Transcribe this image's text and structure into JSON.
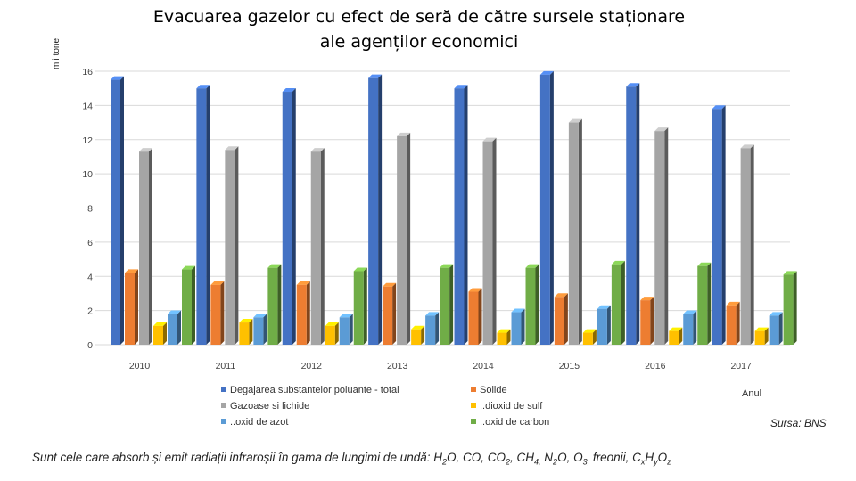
{
  "title_line1": "Evacuarea gazelor cu efect de seră de către sursele staționare",
  "title_line2": "ale agenților economici",
  "chart_data": {
    "type": "bar",
    "title": "Evacuarea gazelor cu efect de seră de către sursele staționare ale agenților economici",
    "ylabel": "mii tone",
    "xlabel": "Anul",
    "ylim": [
      0,
      16
    ],
    "yticks": [
      0,
      2,
      4,
      6,
      8,
      10,
      12,
      14,
      16
    ],
    "grid": true,
    "legend_position": "bottom",
    "categories": [
      "2010",
      "2011",
      "2012",
      "2013",
      "2014",
      "2015",
      "2016",
      "2017"
    ],
    "series": [
      {
        "name": "Degajarea substantelor poluante - total",
        "color": "#4472C4",
        "values": [
          15.5,
          15.0,
          14.8,
          15.6,
          15.0,
          15.8,
          15.1,
          13.8
        ]
      },
      {
        "name": "Solide",
        "color": "#ED7D31",
        "values": [
          4.2,
          3.5,
          3.5,
          3.4,
          3.1,
          2.8,
          2.6,
          2.3
        ]
      },
      {
        "name": "Gazoase si lichide",
        "color": "#A5A5A5",
        "values": [
          11.3,
          11.4,
          11.3,
          12.2,
          11.9,
          13.0,
          12.5,
          11.5
        ]
      },
      {
        "name": "..dioxid de sulf",
        "color": "#FFC000",
        "values": [
          1.1,
          1.3,
          1.1,
          0.9,
          0.7,
          0.7,
          0.8,
          0.8
        ]
      },
      {
        "name": "..oxid de azot",
        "color": "#5B9BD5",
        "values": [
          1.8,
          1.6,
          1.6,
          1.7,
          1.9,
          2.1,
          1.8,
          1.7
        ]
      },
      {
        "name": "..oxid de carbon",
        "color": "#70AD47",
        "values": [
          4.4,
          4.5,
          4.3,
          4.5,
          4.5,
          4.7,
          4.6,
          4.1
        ]
      }
    ]
  },
  "source": "Sursa: BNS",
  "footnote": {
    "p1": "Sunt cele care absorb și emit radiații infraroșii în gama de lungimi de undă: H",
    "s1": "2",
    "p2": "O, CO, CO",
    "s2": "2",
    "p3": ", CH",
    "s3": "4,",
    "p4": " N",
    "s4": "2",
    "p5": "O, O",
    "s5": "3,",
    "p6": " freonii, C",
    "s6": "x",
    "p7": "H",
    "s7": "y",
    "p8": "O",
    "s8": "z"
  }
}
